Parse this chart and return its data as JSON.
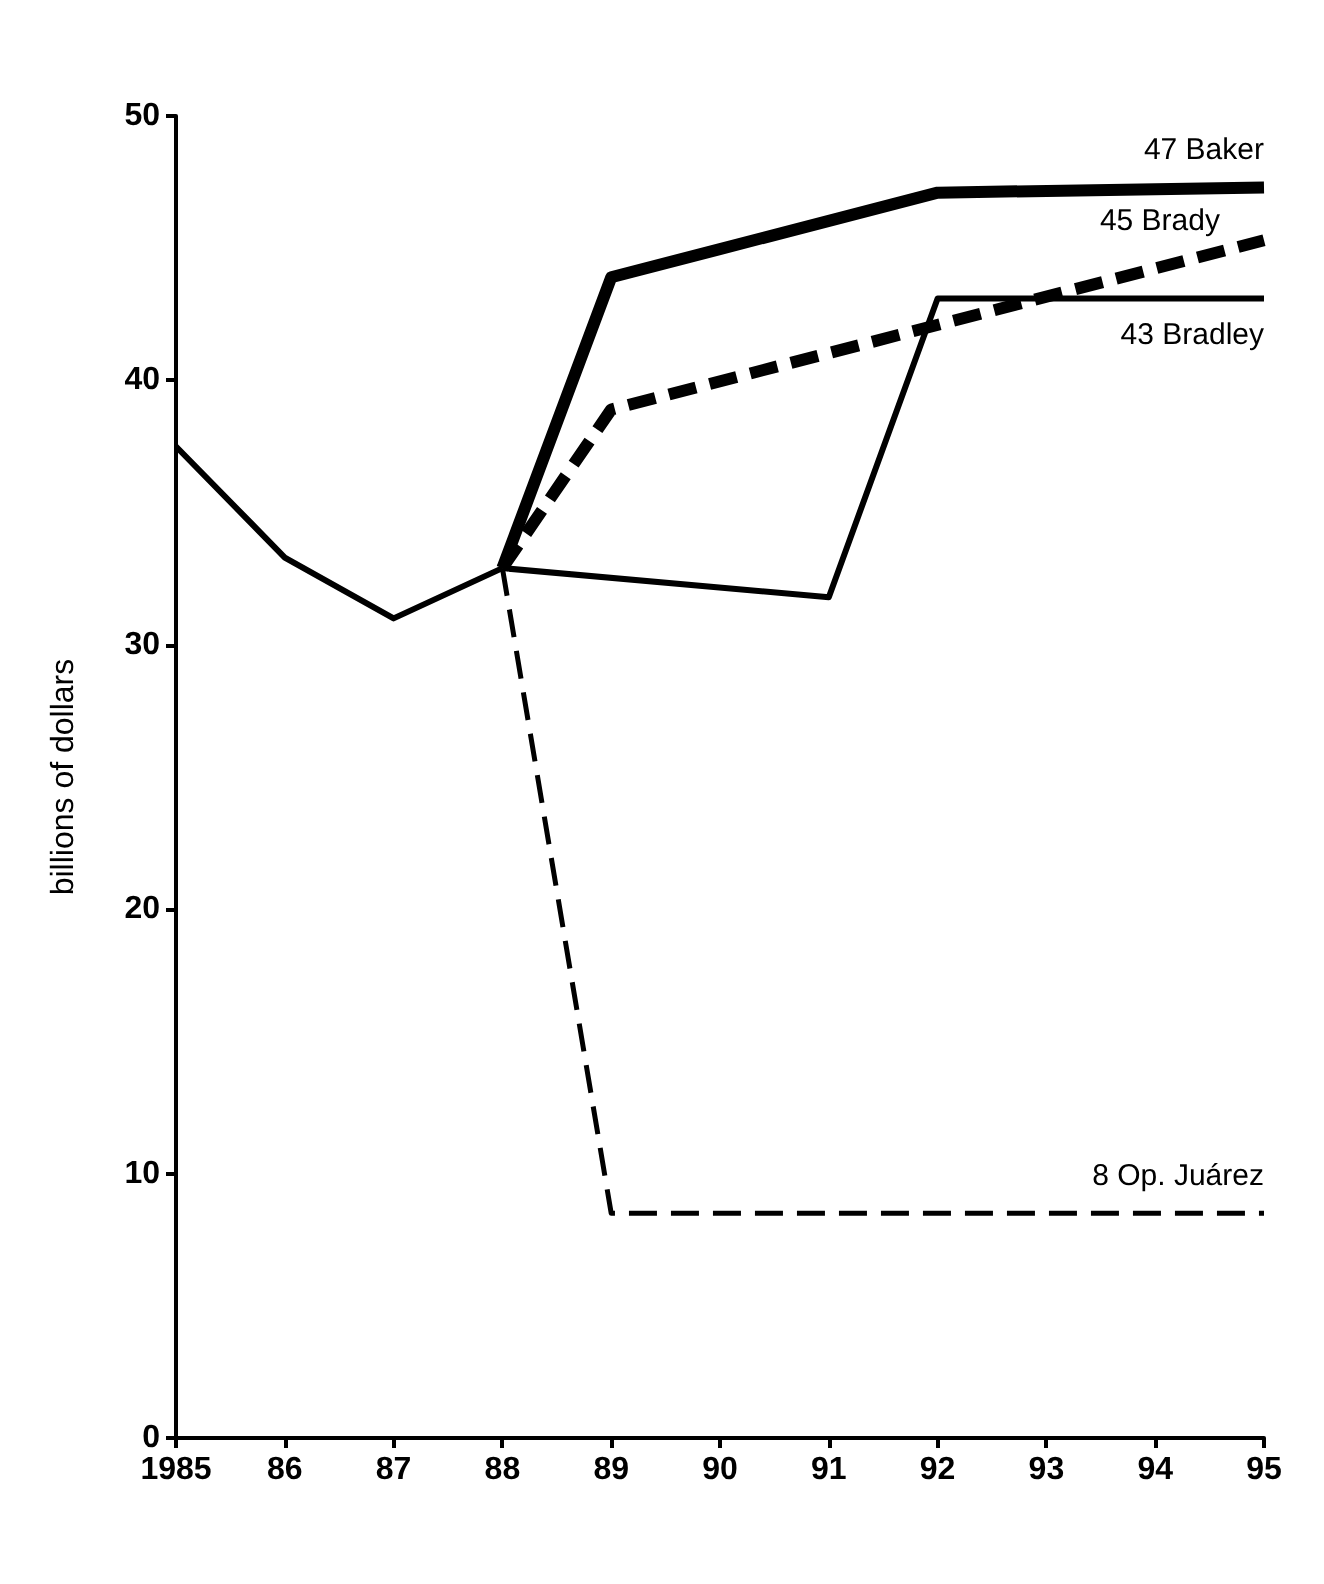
{
  "chart_data": {
    "type": "line",
    "ylabel": "billions of dollars",
    "xlim": [
      1985,
      1995
    ],
    "xticks": [
      1985,
      {
        "value": 1986,
        "label": "86"
      },
      {
        "value": 1987,
        "label": "87"
      },
      {
        "value": 1988,
        "label": "88"
      },
      {
        "value": 1989,
        "label": "89"
      },
      {
        "value": 1990,
        "label": "90"
      },
      {
        "value": 1991,
        "label": "91"
      },
      {
        "value": 1992,
        "label": "92"
      },
      {
        "value": 1993,
        "label": "93"
      },
      {
        "value": 1994,
        "label": "94"
      },
      {
        "value": 1995,
        "label": "95"
      }
    ],
    "ylim": [
      0,
      50
    ],
    "yticks": [
      0,
      10,
      20,
      30,
      40,
      50
    ],
    "grid": false,
    "legend": false,
    "marker": "none",
    "series": [
      {
        "color": "#000000",
        "line_style": "solid",
        "x": [
          1985,
          1986,
          1987,
          1988
        ],
        "values": [
          37.5,
          33.3,
          31.0,
          32.9
        ]
      },
      {
        "name": "47 Baker",
        "color": "#000000",
        "line_style": "solid",
        "x": [
          1988,
          1989,
          1992,
          1995
        ],
        "values": [
          32.9,
          43.9,
          47.1,
          47.3
        ]
      },
      {
        "name": "45 Brady",
        "color": "#000000",
        "line_style": "dashed",
        "x": [
          1988,
          1989,
          1995
        ],
        "values": [
          32.9,
          38.9,
          45.3
        ]
      },
      {
        "name": "43 Bradley",
        "color": "#000000",
        "line_style": "solid",
        "x": [
          1988,
          1991,
          1992,
          1995
        ],
        "values": [
          32.9,
          31.8,
          43.1,
          43.1
        ]
      },
      {
        "name": "8 Op. Juárez",
        "color": "#000000",
        "line_style": "dashed",
        "x": [
          1988,
          1989,
          1995
        ],
        "values": [
          32.9,
          8.5,
          8.5
        ]
      }
    ]
  }
}
